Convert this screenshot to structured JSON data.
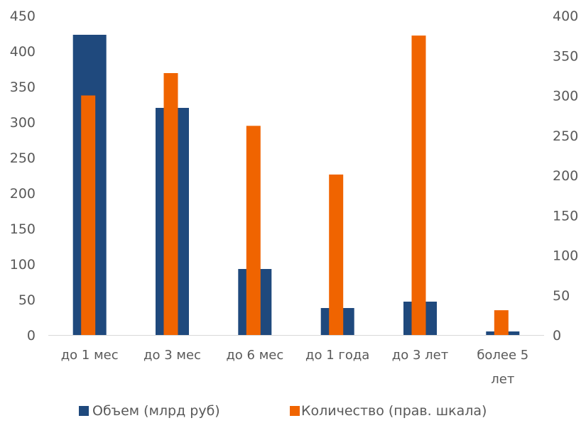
{
  "chart_data": {
    "type": "bar",
    "categories": [
      "до 1 мес",
      "до 3 мес",
      "до 6 мес",
      "до 1 года",
      "до 3 лет",
      "более 5 лет"
    ],
    "category_labels": [
      [
        "до 1 мес"
      ],
      [
        "до 3 мес"
      ],
      [
        "до 6 мес"
      ],
      [
        "до 1 года"
      ],
      [
        "до 3 лет"
      ],
      [
        "более 5",
        "лет"
      ]
    ],
    "series": [
      {
        "name": "Объем (млрд руб)",
        "axis": "left",
        "color": "#1f497d",
        "values": [
          423,
          320,
          93,
          38,
          47,
          5
        ]
      },
      {
        "name": "Количество (прав. шкала)",
        "axis": "right",
        "color": "#f06400",
        "values": [
          300,
          328,
          262,
          201,
          375,
          31
        ]
      }
    ],
    "y_left": {
      "min": 0,
      "max": 450,
      "step": 50,
      "ticks": [
        "0",
        "50",
        "100",
        "150",
        "200",
        "250",
        "300",
        "350",
        "400",
        "450"
      ]
    },
    "y_right": {
      "min": 0,
      "max": 400,
      "step": 50,
      "ticks": [
        "0",
        "50",
        "100",
        "150",
        "200",
        "250",
        "300",
        "350",
        "400"
      ]
    },
    "grid": false,
    "legend_position": "bottom",
    "title": "",
    "xlabel": "",
    "ylabel": ""
  }
}
